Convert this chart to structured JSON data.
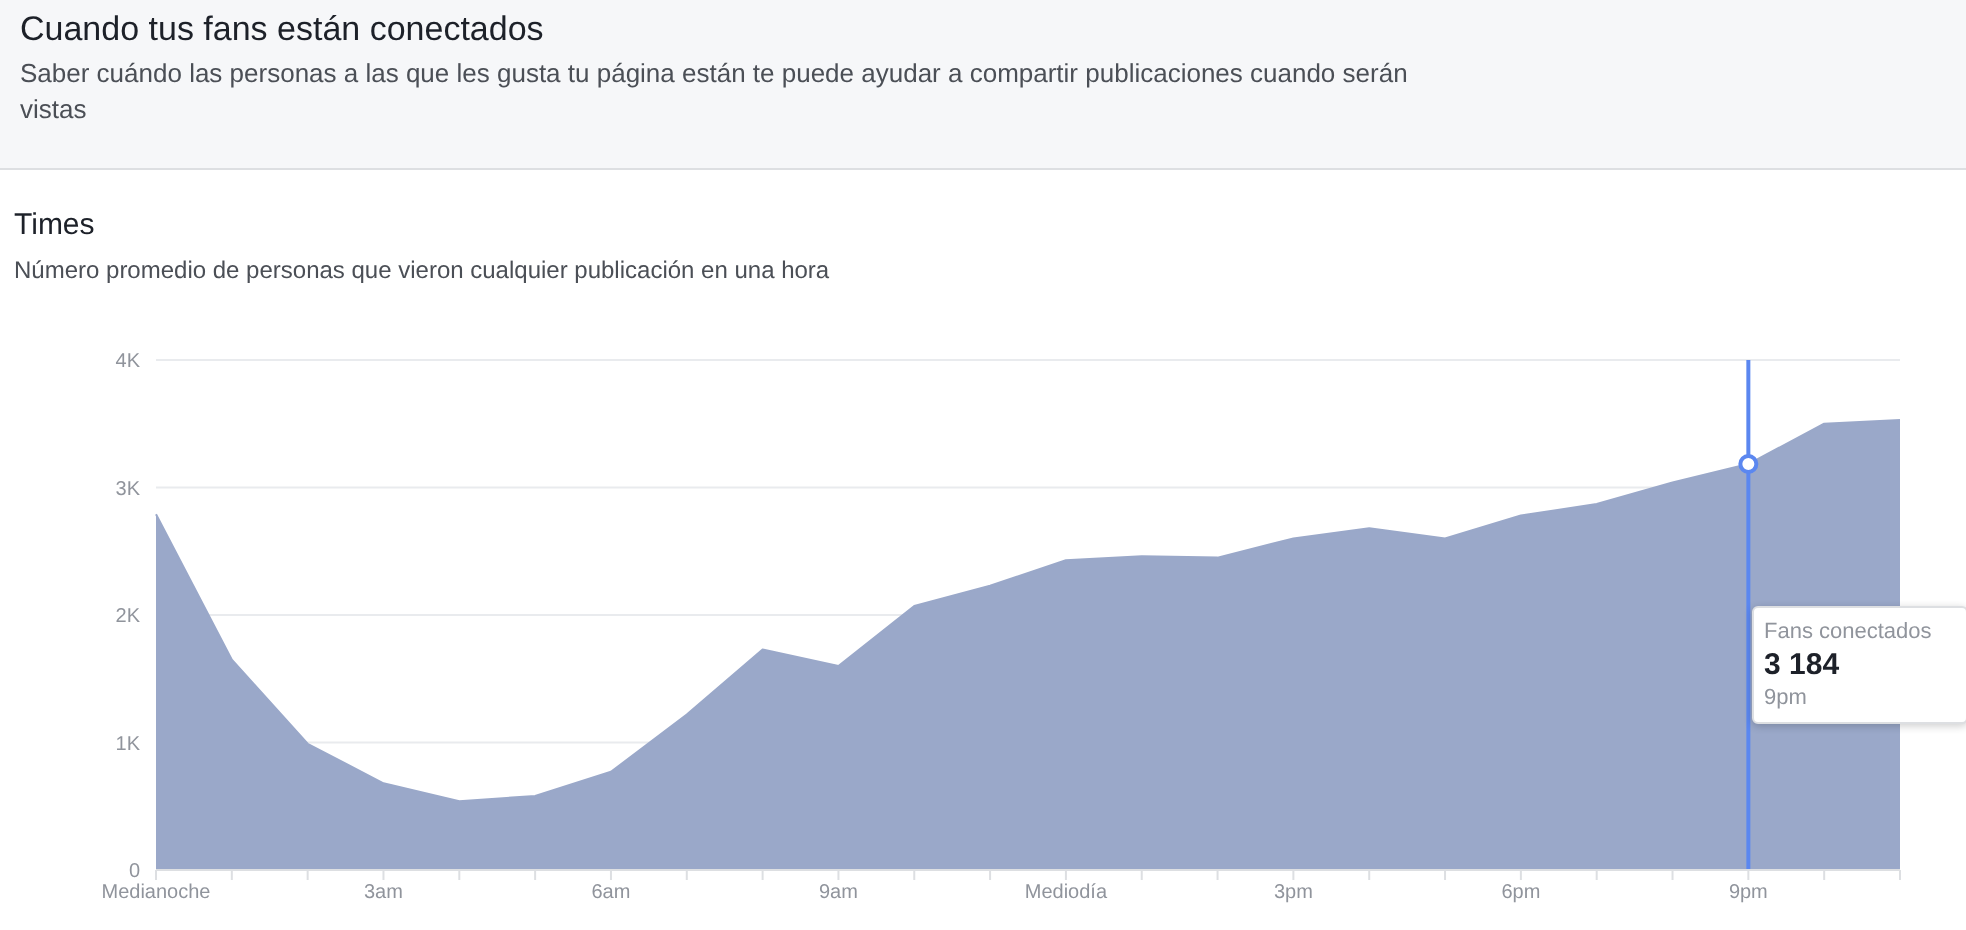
{
  "chart_data": {
    "type": "area",
    "title": "Cuando tus fans están conectados",
    "subtitle": "Saber cuándo las personas a las que les gusta tu página están te puede ayudar a compartir publicaciones cuando serán vistas",
    "annotations": [
      "Times",
      "Número promedio de personas que vieron cualquier publicación en una hora",
      "Fans conectados\n3 184\n9pm"
    ],
    "categories": [
      "Medianoche",
      null,
      null,
      "3am",
      null,
      null,
      "6am",
      null,
      null,
      "9am",
      null,
      null,
      "Mediodía",
      null,
      null,
      "3pm",
      null,
      null,
      "6pm",
      null,
      null,
      "9pm",
      null,
      null
    ],
    "series": [
      {
        "color": "#9aa8c9",
        "values": [
          2790,
          1650,
          990,
          680,
          540,
          580,
          770,
          1220,
          1730,
          1600,
          2070,
          2230,
          2430,
          2460,
          2450,
          2600,
          2680,
          2600,
          2780,
          2870,
          3040,
          3184,
          3500,
          3530
        ]
      }
    ],
    "ylim": [
      0,
      4000
    ],
    "yticks": [
      {
        "value": 0,
        "label": "0"
      },
      {
        "value": 1000,
        "label": "1K"
      },
      {
        "value": 2000,
        "label": "2K"
      },
      {
        "value": 3000,
        "label": "3K"
      },
      {
        "value": 4000,
        "label": "4K"
      }
    ],
    "grid": "y",
    "legend": false,
    "marker": "none",
    "ref_lines": [
      {
        "axis": "x",
        "value": "9pm",
        "color": "#5b87f0"
      }
    ]
  }
}
